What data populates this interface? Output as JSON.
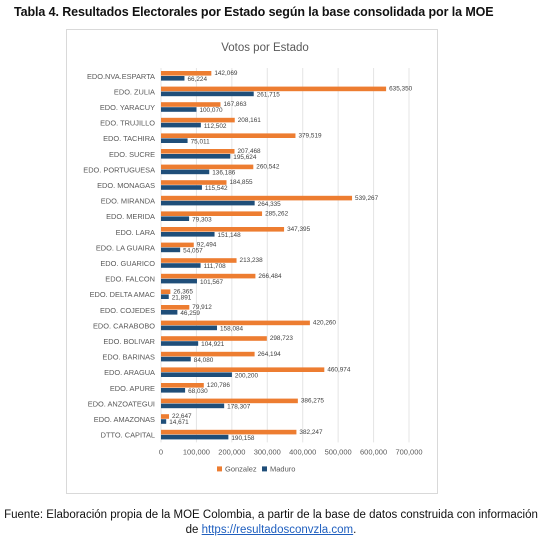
{
  "table_title": "Tabla 4. Resultados Electorales por Estado según la base consolidada por la MOE",
  "source": {
    "line1": "Fuente: Elaboración propia de la MOE Colombia, a partir de la base de datos construida con información",
    "line2_prefix": "de ",
    "link_text": "https://resultadosconvzla.com",
    "line2_suffix": "."
  },
  "colors": {
    "gonzalez": "#ed7d31",
    "maduro": "#1f4e79",
    "grid": "#e4e4e4",
    "axis_text": "#595959"
  },
  "chart_data": {
    "type": "bar",
    "orientation": "horizontal",
    "title": "Votos por Estado",
    "categories": [
      "EDO.NVA.ESPARTA",
      "EDO. ZULIA",
      "EDO. YARACUY",
      "EDO. TRUJILLO",
      "EDO. TACHIRA",
      "EDO. SUCRE",
      "EDO. PORTUGUESA",
      "EDO. MONAGAS",
      "EDO. MIRANDA",
      "EDO. MERIDA",
      "EDO. LARA",
      "EDO. LA GUAIRA",
      "EDO. GUARICO",
      "EDO. FALCON",
      "EDO. DELTA AMAC",
      "EDO. COJEDES",
      "EDO. CARABOBO",
      "EDO. BOLIVAR",
      "EDO. BARINAS",
      "EDO. ARAGUA",
      "EDO. APURE",
      "EDO. ANZOATEGUI",
      "EDO. AMAZONAS",
      "DTTO. CAPITAL"
    ],
    "series": [
      {
        "name": "Gonzalez",
        "values": [
          142069,
          635350,
          167863,
          208161,
          379519,
          207468,
          260542,
          184855,
          539267,
          285262,
          347395,
          92494,
          213238,
          266484,
          26365,
          79912,
          420260,
          298723,
          264194,
          460974,
          120786,
          386275,
          22647,
          382247
        ],
        "labels": [
          "142,069",
          "635,350",
          "167,863",
          "208,161",
          "379,519",
          "207,468",
          "260,542",
          "184,855",
          "539,267",
          "285,262",
          "347,395",
          "92,494",
          "213,238",
          "266,484",
          "26,365",
          "79,912",
          "420,260",
          "298,723",
          "264,194",
          "460,974",
          "120,786",
          "386,275",
          "22,647",
          "382,247"
        ]
      },
      {
        "name": "Maduro",
        "values": [
          66224,
          261715,
          100070,
          112502,
          75011,
          195624,
          136186,
          115542,
          264335,
          79303,
          151148,
          54057,
          111708,
          101567,
          21891,
          46259,
          158084,
          104921,
          84080,
          200200,
          68030,
          178307,
          14671,
          190158
        ],
        "labels": [
          "66,224",
          "261,715",
          "100,070",
          "112,502",
          "75,011",
          "195,624",
          "136,186",
          "115,542",
          "264,335",
          "79,303",
          "151,148",
          "54,057",
          "111,708",
          "101,567",
          "21,891",
          "46,259",
          "158,084",
          "104,921",
          "84,080",
          "200,200",
          "68,030",
          "178,307",
          "14,671",
          "190,158"
        ]
      }
    ],
    "xlim": [
      0,
      700000
    ],
    "xticks": [
      0,
      100000,
      200000,
      300000,
      400000,
      500000,
      600000,
      700000
    ],
    "xtick_labels": [
      "0",
      "100,000",
      "200,000",
      "300,000",
      "400,000",
      "500,000",
      "600,000",
      "700,000"
    ],
    "grid": true,
    "legend_position": "bottom"
  }
}
